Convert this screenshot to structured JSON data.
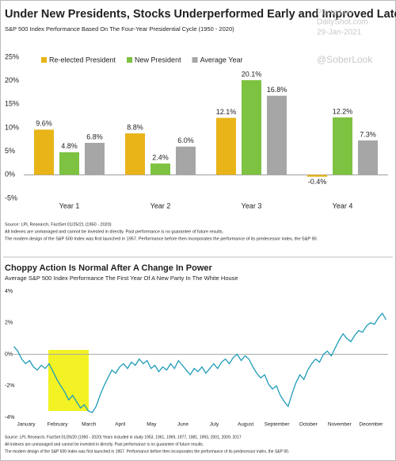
{
  "chart_data": [
    {
      "type": "bar",
      "title": "Under New Presidents, Stocks Underperformed Early and Improved Later",
      "subtitle": "S&P 500 Index Performance Based On The Four-Year Presidential Cycle (1950 - 2020)",
      "categories": [
        "Year 1",
        "Year 2",
        "Year 3",
        "Year 4"
      ],
      "series": [
        {
          "name": "Re-elected President",
          "color": "#e8b418",
          "values": [
            9.6,
            8.8,
            12.1,
            -0.4
          ],
          "value_labels": [
            "9.6%",
            "8.8%",
            "12.1%",
            "-0.4%"
          ]
        },
        {
          "name": "New President",
          "color": "#7dc241",
          "values": [
            4.8,
            2.4,
            20.1,
            12.2
          ],
          "value_labels": [
            "4.8%",
            "2.4%",
            "20.1%",
            "12.2%"
          ]
        },
        {
          "name": "Average Year",
          "color": "#a6a6a6",
          "values": [
            6.8,
            6.0,
            16.8,
            7.3
          ],
          "value_labels": [
            "6.8%",
            "6.0%",
            "16.8%",
            "7.3%"
          ]
        }
      ],
      "ylim": [
        -5,
        25
      ],
      "yticks": [
        {
          "value": -5,
          "label": "-5%"
        },
        {
          "value": 0,
          "label": "0%"
        },
        {
          "value": 5,
          "label": "5%"
        },
        {
          "value": 10,
          "label": "10%"
        },
        {
          "value": 15,
          "label": "15%"
        },
        {
          "value": 20,
          "label": "20%"
        },
        {
          "value": 25,
          "label": "25%"
        }
      ],
      "legend": "top-left",
      "notes": [
        "Source: LPL Research, FactSet 01/25/21 (1950 - 2020)",
        "All indexes are unmanaged and cannot be invested in directly. Past performance is no guarantee of future results.",
        "The modern design of the S&P 500 Index was first launched in 1957. Performance before then incorporates the performance of its predecessor index, the S&P 90."
      ],
      "watermark": [
        "Posted on",
        "DailyShot.com",
        "29-Jan-2021",
        "@SoberLook"
      ]
    },
    {
      "type": "line",
      "title": "Choppy Action Is Normal After A Change In Power",
      "subtitle": "Average S&P 500 Index Performance The First Year Of A New Party In The White House",
      "series": [
        {
          "color": "#1f9cb8",
          "values": [
            0.5,
            0.2,
            -0.3,
            -0.6,
            -0.4,
            -0.8,
            -1.0,
            -0.7,
            -0.9,
            -0.6,
            -1.1,
            -1.6,
            -2.0,
            -2.4,
            -2.9,
            -2.6,
            -3.0,
            -3.4,
            -3.2,
            -3.6,
            -3.7,
            -3.3,
            -2.6,
            -2.0,
            -1.5,
            -1.0,
            -1.2,
            -0.8,
            -0.6,
            -0.9,
            -0.5,
            -0.7,
            -0.3,
            -0.6,
            -0.4,
            -0.9,
            -0.7,
            -1.1,
            -0.8,
            -1.0,
            -0.6,
            -0.9,
            -0.4,
            -0.7,
            -1.0,
            -1.3,
            -0.9,
            -1.1,
            -0.8,
            -1.2,
            -0.9,
            -0.6,
            -0.9,
            -0.5,
            -0.3,
            -0.6,
            -0.2,
            0.0,
            -0.4,
            -0.1,
            -0.3,
            -0.8,
            -1.2,
            -1.5,
            -1.3,
            -1.9,
            -2.2,
            -2.0,
            -2.6,
            -3.0,
            -3.3,
            -2.5,
            -1.8,
            -1.3,
            -1.6,
            -1.0,
            -0.6,
            -0.3,
            -0.5,
            0.0,
            0.2,
            -0.1,
            0.4,
            0.9,
            1.3,
            1.0,
            0.8,
            1.2,
            1.5,
            1.4,
            1.8,
            2.0,
            1.9,
            2.3,
            2.6,
            2.2
          ]
        }
      ],
      "xlim": [
        0,
        96
      ],
      "xticks": [
        {
          "value": 0,
          "label": "January"
        },
        {
          "value": 8,
          "label": "February"
        },
        {
          "value": 16,
          "label": "March"
        },
        {
          "value": 24,
          "label": "April"
        },
        {
          "value": 32,
          "label": "May"
        },
        {
          "value": 40,
          "label": "June"
        },
        {
          "value": 48,
          "label": "July"
        },
        {
          "value": 56,
          "label": "August"
        },
        {
          "value": 64,
          "label": "September"
        },
        {
          "value": 72,
          "label": "October"
        },
        {
          "value": 80,
          "label": "November"
        },
        {
          "value": 88,
          "label": "December"
        }
      ],
      "ylim": [
        -4,
        4
      ],
      "yticks": [
        {
          "value": -4,
          "label": "-4%"
        },
        {
          "value": -2,
          "label": "-2%"
        },
        {
          "value": 0,
          "label": "0%"
        },
        {
          "value": 2,
          "label": "2%"
        },
        {
          "value": 4,
          "label": "4%"
        }
      ],
      "notes": [
        "Source: LPL Research, FactSet 01/26/20 (1950 - 2020)   Years included in study 1953, 1961, 1969, 1977, 1981, 1993, 2001, 2009, 2017",
        "All indexes are unmanaged and cannot be invested in directly. Past performance is no guarantee of future results.",
        "The modern design of the S&P 500 Index was first launched in 1957. Performance before then incorporates the performance of its predecessor index, the S&P 90."
      ]
    }
  ]
}
